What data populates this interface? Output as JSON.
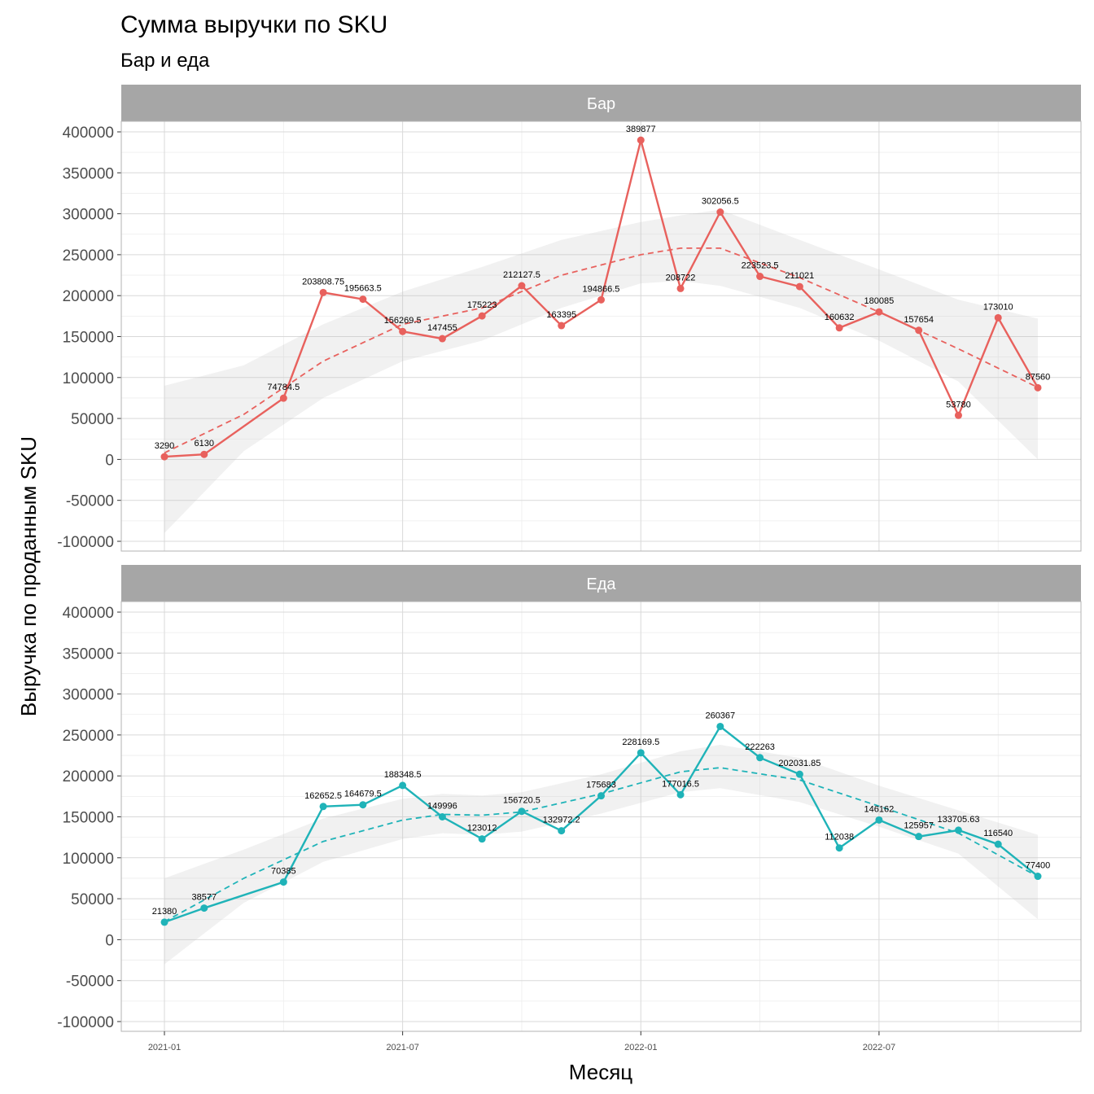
{
  "chart_data": {
    "type": "line",
    "title": "Сумма выручки по SKU",
    "subtitle": "Бар и еда",
    "xlabel": "Месяц",
    "ylabel": "Выручка по проданным SKU",
    "ylim": [
      -100000,
      400000
    ],
    "y_ticks": [
      "400000",
      "350000",
      "300000",
      "250000",
      "200000",
      "150000",
      "100000",
      "50000",
      "0",
      "-50000",
      "-100000"
    ],
    "x_ticks": [
      "2021-01",
      "2021-07",
      "2022-01",
      "2022-07"
    ],
    "grid": true,
    "legend": "none",
    "facets": [
      {
        "strip": "Бар",
        "color": "#E8615D",
        "points": [
          {
            "x": "2021-01",
            "y": 3290,
            "label": "3290"
          },
          {
            "x": "2021-02",
            "y": 6130,
            "label": "6130"
          },
          {
            "x": "2021-04",
            "y": 74784.5,
            "label": "74784.5"
          },
          {
            "x": "2021-05",
            "y": 203808.75,
            "label": "203808.75"
          },
          {
            "x": "2021-06",
            "y": 195663.5,
            "label": "195663.5"
          },
          {
            "x": "2021-07",
            "y": 156269.5,
            "label": "156269.5"
          },
          {
            "x": "2021-08",
            "y": 147455,
            "label": "147455"
          },
          {
            "x": "2021-09",
            "y": 175223,
            "label": "175223"
          },
          {
            "x": "2021-10",
            "y": 212127.5,
            "label": "212127.5"
          },
          {
            "x": "2021-11",
            "y": 163395,
            "label": "163395"
          },
          {
            "x": "2021-12",
            "y": 194866.5,
            "label": "194866.5"
          },
          {
            "x": "2022-01",
            "y": 389877,
            "label": "389877"
          },
          {
            "x": "2022-02",
            "y": 208722,
            "label": "208722"
          },
          {
            "x": "2022-03",
            "y": 302056.5,
            "label": "302056.5"
          },
          {
            "x": "2022-04",
            "y": 223523.5,
            "label": "223523.5"
          },
          {
            "x": "2022-05",
            "y": 211021,
            "label": "211021"
          },
          {
            "x": "2022-06",
            "y": 160632,
            "label": "160632"
          },
          {
            "x": "2022-07",
            "y": 180085,
            "label": "180085"
          },
          {
            "x": "2022-08",
            "y": 157654,
            "label": "157654"
          },
          {
            "x": "2022-09",
            "y": 53780,
            "label": "53780"
          },
          {
            "x": "2022-10",
            "y": 173010,
            "label": "173010"
          },
          {
            "x": "2022-11",
            "y": 87560,
            "label": "87560"
          }
        ],
        "trend": [
          {
            "x": "2021-01",
            "y": 8000,
            "lo": -90000,
            "hi": 90000
          },
          {
            "x": "2021-03",
            "y": 55000,
            "lo": 10000,
            "hi": 115000
          },
          {
            "x": "2021-05",
            "y": 120000,
            "lo": 75000,
            "hi": 165000
          },
          {
            "x": "2021-07",
            "y": 165000,
            "lo": 120000,
            "hi": 205000
          },
          {
            "x": "2021-09",
            "y": 185000,
            "lo": 145000,
            "hi": 235000
          },
          {
            "x": "2021-11",
            "y": 225000,
            "lo": 185000,
            "hi": 268000
          },
          {
            "x": "2022-01",
            "y": 250000,
            "lo": 215000,
            "hi": 290000
          },
          {
            "x": "2022-02",
            "y": 258000,
            "lo": 218000,
            "hi": 298000
          },
          {
            "x": "2022-03",
            "y": 258000,
            "lo": 212000,
            "hi": 305000
          },
          {
            "x": "2022-05",
            "y": 222000,
            "lo": 185000,
            "hi": 268000
          },
          {
            "x": "2022-07",
            "y": 180000,
            "lo": 145000,
            "hi": 232000
          },
          {
            "x": "2022-09",
            "y": 135000,
            "lo": 95000,
            "hi": 195000
          },
          {
            "x": "2022-11",
            "y": 88000,
            "lo": 0,
            "hi": 172000
          }
        ]
      },
      {
        "strip": "Еда",
        "color": "#1FB3B8",
        "points": [
          {
            "x": "2021-01",
            "y": 21380,
            "label": "21380"
          },
          {
            "x": "2021-02",
            "y": 38577,
            "label": "38577"
          },
          {
            "x": "2021-04",
            "y": 70385,
            "label": "70385"
          },
          {
            "x": "2021-05",
            "y": 162652.5,
            "label": "162652.5"
          },
          {
            "x": "2021-06",
            "y": 164679.5,
            "label": "164679.5"
          },
          {
            "x": "2021-07",
            "y": 188348.5,
            "label": "188348.5"
          },
          {
            "x": "2021-08",
            "y": 149996,
            "label": "149996"
          },
          {
            "x": "2021-09",
            "y": 123012,
            "label": "123012"
          },
          {
            "x": "2021-10",
            "y": 156720.5,
            "label": "156720.5"
          },
          {
            "x": "2021-11",
            "y": 132972.2,
            "label": "132972.2"
          },
          {
            "x": "2021-12",
            "y": 175683,
            "label": "175683"
          },
          {
            "x": "2022-01",
            "y": 228169.5,
            "label": "228169.5"
          },
          {
            "x": "2022-02",
            "y": 177016.5,
            "label": "177016.5"
          },
          {
            "x": "2022-03",
            "y": 260367,
            "label": "260367"
          },
          {
            "x": "2022-04",
            "y": 222263,
            "label": "222263"
          },
          {
            "x": "2022-05",
            "y": 202031.85,
            "label": "202031.85"
          },
          {
            "x": "2022-06",
            "y": 112038,
            "label": "112038"
          },
          {
            "x": "2022-07",
            "y": 146162,
            "label": "146162"
          },
          {
            "x": "2022-08",
            "y": 125957,
            "label": "125957"
          },
          {
            "x": "2022-09",
            "y": 133705.63,
            "label": "133705.63"
          },
          {
            "x": "2022-10",
            "y": 116540,
            "label": "116540"
          },
          {
            "x": "2022-11",
            "y": 77400,
            "label": "77400"
          }
        ],
        "trend": [
          {
            "x": "2021-01",
            "y": 22000,
            "lo": -30000,
            "hi": 75000
          },
          {
            "x": "2021-03",
            "y": 75000,
            "lo": 45000,
            "hi": 110000
          },
          {
            "x": "2021-05",
            "y": 120000,
            "lo": 95000,
            "hi": 148000
          },
          {
            "x": "2021-07",
            "y": 146000,
            "lo": 123000,
            "hi": 172000
          },
          {
            "x": "2021-08",
            "y": 153000,
            "lo": 130000,
            "hi": 178000
          },
          {
            "x": "2021-09",
            "y": 152000,
            "lo": 128000,
            "hi": 176000
          },
          {
            "x": "2021-10",
            "y": 156000,
            "lo": 132000,
            "hi": 180000
          },
          {
            "x": "2021-12",
            "y": 178000,
            "lo": 154000,
            "hi": 202000
          },
          {
            "x": "2022-02",
            "y": 205000,
            "lo": 180000,
            "hi": 230000
          },
          {
            "x": "2022-03",
            "y": 210000,
            "lo": 185000,
            "hi": 238000
          },
          {
            "x": "2022-05",
            "y": 195000,
            "lo": 168000,
            "hi": 222000
          },
          {
            "x": "2022-07",
            "y": 163000,
            "lo": 138000,
            "hi": 188000
          },
          {
            "x": "2022-09",
            "y": 130000,
            "lo": 105000,
            "hi": 158000
          },
          {
            "x": "2022-11",
            "y": 77000,
            "lo": 25000,
            "hi": 128000
          }
        ]
      }
    ]
  }
}
